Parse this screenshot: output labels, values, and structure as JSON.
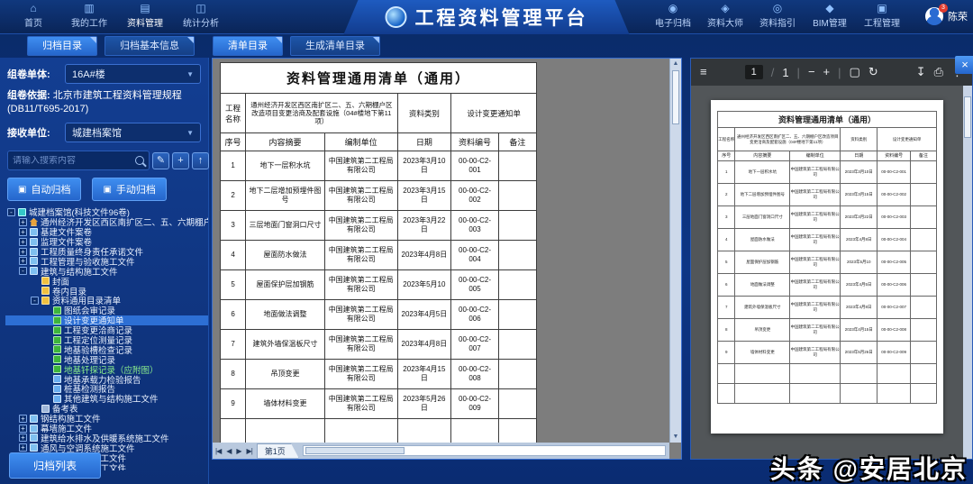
{
  "top_nav": {
    "brand": "工程资料管理平台",
    "left_items": [
      {
        "id": "home",
        "label": "首页",
        "glyph": "⌂",
        "icon": "home-icon",
        "active": false
      },
      {
        "id": "my-work",
        "label": "我的工作",
        "glyph": "▥",
        "icon": "briefcase-icon",
        "active": false
      },
      {
        "id": "data-management",
        "label": "资料管理",
        "glyph": "▤",
        "icon": "folder-icon",
        "active": true
      },
      {
        "id": "statistics",
        "label": "统计分析",
        "glyph": "◫",
        "icon": "chart-icon",
        "active": false
      }
    ],
    "right_items": [
      {
        "id": "e-archive",
        "label": "电子归档",
        "glyph": "◉",
        "icon": "archive-icon"
      },
      {
        "id": "data-master",
        "label": "资料大师",
        "glyph": "◈",
        "icon": "master-icon"
      },
      {
        "id": "data-guide",
        "label": "资料指引",
        "glyph": "◎",
        "icon": "guide-icon"
      },
      {
        "id": "bim-management",
        "label": "BIM管理",
        "glyph": "◆",
        "icon": "bim-icon"
      },
      {
        "id": "project-management",
        "label": "工程管理",
        "glyph": "▣",
        "icon": "project-icon"
      }
    ],
    "user": {
      "name": "陈荣",
      "badge": "3"
    }
  },
  "tabs": {
    "archive_group": [
      {
        "id": "archive-catalog",
        "label": "归档目录",
        "active": true
      },
      {
        "id": "archive-basic-info",
        "label": "归档基本信息",
        "active": false
      }
    ],
    "list_group": [
      {
        "id": "list-catalog",
        "label": "清单目录",
        "active": true
      },
      {
        "id": "generate-list-catalog",
        "label": "生成清单目录",
        "active": false
      }
    ]
  },
  "sidebar": {
    "fields": [
      {
        "label": "组卷单体:",
        "value": "16A#楼"
      },
      {
        "label": "组卷依据:",
        "value": "北京市建筑工程资料管理规程(DB11/T695-2017)"
      },
      {
        "label": "接收单位:",
        "value": "城建档案馆"
      }
    ],
    "search_placeholder": "请输入搜索内容",
    "tools": [
      {
        "id": "edit",
        "glyph": "✎",
        "icon": "edit-icon"
      },
      {
        "id": "add",
        "glyph": "+",
        "icon": "plus-icon"
      },
      {
        "id": "move-up",
        "glyph": "↑",
        "icon": "arrow-up-icon"
      },
      {
        "id": "move-down",
        "glyph": "↓",
        "icon": "arrow-down-icon"
      }
    ],
    "buttons": [
      {
        "id": "auto-archive",
        "label": "自动归档",
        "glyph": "▣"
      },
      {
        "id": "manual-archive",
        "label": "手动归档",
        "glyph": "▣"
      }
    ],
    "bottom_button": {
      "label": "归档列表"
    },
    "tree": [
      {
        "label": "城建档案馆(科技文件96卷)",
        "d": 0,
        "x": "-",
        "i": "building"
      },
      {
        "label": "通州经济开发区西区南扩区二、五、六期棚户区改造项目安",
        "d": 1,
        "x": "+",
        "i": "home"
      },
      {
        "label": "基建文件案卷",
        "d": 1,
        "x": "+",
        "i": "folder"
      },
      {
        "label": "监理文件案卷",
        "d": 1,
        "x": "+",
        "i": "folder"
      },
      {
        "label": "工程质量终身责任承诺文件",
        "d": 1,
        "x": "+",
        "i": "folder"
      },
      {
        "label": "工程管理与验收施工文件",
        "d": 1,
        "x": "+",
        "i": "folder"
      },
      {
        "label": "建筑与结构施工文件",
        "d": 1,
        "x": "-",
        "i": "folder"
      },
      {
        "label": "封面",
        "d": 2,
        "x": "",
        "i": "doc-yellow"
      },
      {
        "label": "卷内目录",
        "d": 2,
        "x": "",
        "i": "doc-yellow"
      },
      {
        "label": "资料通用目录清单",
        "d": 2,
        "x": "-",
        "i": "folder-yellow"
      },
      {
        "label": "图纸会审记录",
        "d": 3,
        "x": "",
        "i": "doc-green"
      },
      {
        "label": "设计变更通知单",
        "d": 3,
        "x": "",
        "i": "doc-green",
        "sel": true
      },
      {
        "label": "工程变更洽商记录",
        "d": 3,
        "x": "",
        "i": "doc-green"
      },
      {
        "label": "工程定位测量记录",
        "d": 3,
        "x": "",
        "i": "doc-green"
      },
      {
        "label": "地基验槽检查记录",
        "d": 3,
        "x": "",
        "i": "doc-green"
      },
      {
        "label": "地基处理记录",
        "d": 3,
        "x": "",
        "i": "doc-green"
      },
      {
        "label": "地基钎探记录（应附图）",
        "d": 3,
        "x": "",
        "i": "doc-green",
        "green": true
      },
      {
        "label": "地基承载力检验报告",
        "d": 3,
        "x": "",
        "i": "doc-blue"
      },
      {
        "label": "桩基检测报告",
        "d": 3,
        "x": "",
        "i": "doc-blue"
      },
      {
        "label": "其他建筑与结构施工文件",
        "d": 3,
        "x": "",
        "i": "doc-blue"
      },
      {
        "label": "备考表",
        "d": 2,
        "x": "",
        "i": "table"
      },
      {
        "label": "钢结构施工文件",
        "d": 1,
        "x": "+",
        "i": "folder"
      },
      {
        "label": "幕墙施工文件",
        "d": 1,
        "x": "+",
        "i": "folder"
      },
      {
        "label": "建筑给水排水及供暖系统施工文件",
        "d": 1,
        "x": "+",
        "i": "folder"
      },
      {
        "label": "通风与空调系统施工文件",
        "d": 1,
        "x": "+",
        "i": "folder"
      },
      {
        "label": "建筑电气系统施工文件",
        "d": 1,
        "x": "+",
        "i": "folder"
      },
      {
        "label": "智能建筑系统施工文件",
        "d": 1,
        "x": "+",
        "i": "folder"
      }
    ]
  },
  "document": {
    "title": "资料管理通用清单（通用）",
    "info": {
      "project_label": "工程名称",
      "project_value": "通州经济开发区西区南扩区二、五、六期棚户区改造项目变更洽商及配套设施（04#楼地下第11项）",
      "category_label": "资料类别",
      "category_value": "设计变更通知单"
    },
    "columns": [
      "序号",
      "内容摘要",
      "编制单位",
      "日期",
      "资料编号",
      "备注"
    ],
    "rows": [
      [
        "1",
        "地下一层积水坑",
        "中国建筑第二工程局有限公司",
        "2023年3月10日",
        "00-00-C2-001",
        ""
      ],
      [
        "2",
        "地下二层增加预埋件图号",
        "中国建筑第二工程局有限公司",
        "2023年3月15日",
        "00-00-C2-002",
        ""
      ],
      [
        "3",
        "三层地面门窗洞口尺寸",
        "中国建筑第二工程局有限公司",
        "2023年3月22日",
        "00-00-C2-003",
        ""
      ],
      [
        "4",
        "屋面防水做法",
        "中国建筑第二工程局有限公司",
        "2023年4月8日",
        "00-00-C2-004",
        ""
      ],
      [
        "5",
        "屋面保护层加钢筋",
        "中国建筑第二工程局有限公司",
        "2023年5月10",
        "00-00-C2-005",
        ""
      ],
      [
        "6",
        "地面做法调整",
        "中国建筑第二工程局有限公司",
        "2023年4月5日",
        "00-00-C2-006",
        ""
      ],
      [
        "7",
        "建筑外墙保温板尺寸",
        "中国建筑第二工程局有限公司",
        "2023年4月8日",
        "00-00-C2-007",
        ""
      ],
      [
        "8",
        "吊顶变更",
        "中国建筑第二工程局有限公司",
        "2023年4月15日",
        "00-00-C2-008",
        ""
      ],
      [
        "9",
        "墙体材料变更",
        "中国建筑第二工程局有限公司",
        "2023年5月26日",
        "00-00-C2-009",
        ""
      ]
    ],
    "empty_rows": 2,
    "pager": {
      "first_glyph": "|◀",
      "prev_glyph": "◀",
      "next_glyph": "▶",
      "last_glyph": "▶|",
      "page_label": "第1页"
    }
  },
  "pdf_viewer": {
    "menu_glyph": "≡",
    "page": "1",
    "divider": "/",
    "total": "1",
    "zoom_out_glyph": "−",
    "zoom_in_glyph": "+",
    "fit_glyph": "▢",
    "rotate_glyph": "↻",
    "download_glyph": "↧",
    "print_glyph": "⎙",
    "more_glyph": "⋮",
    "close_glyph": "×"
  },
  "watermark": {
    "text": "头条 @安居北京"
  }
}
